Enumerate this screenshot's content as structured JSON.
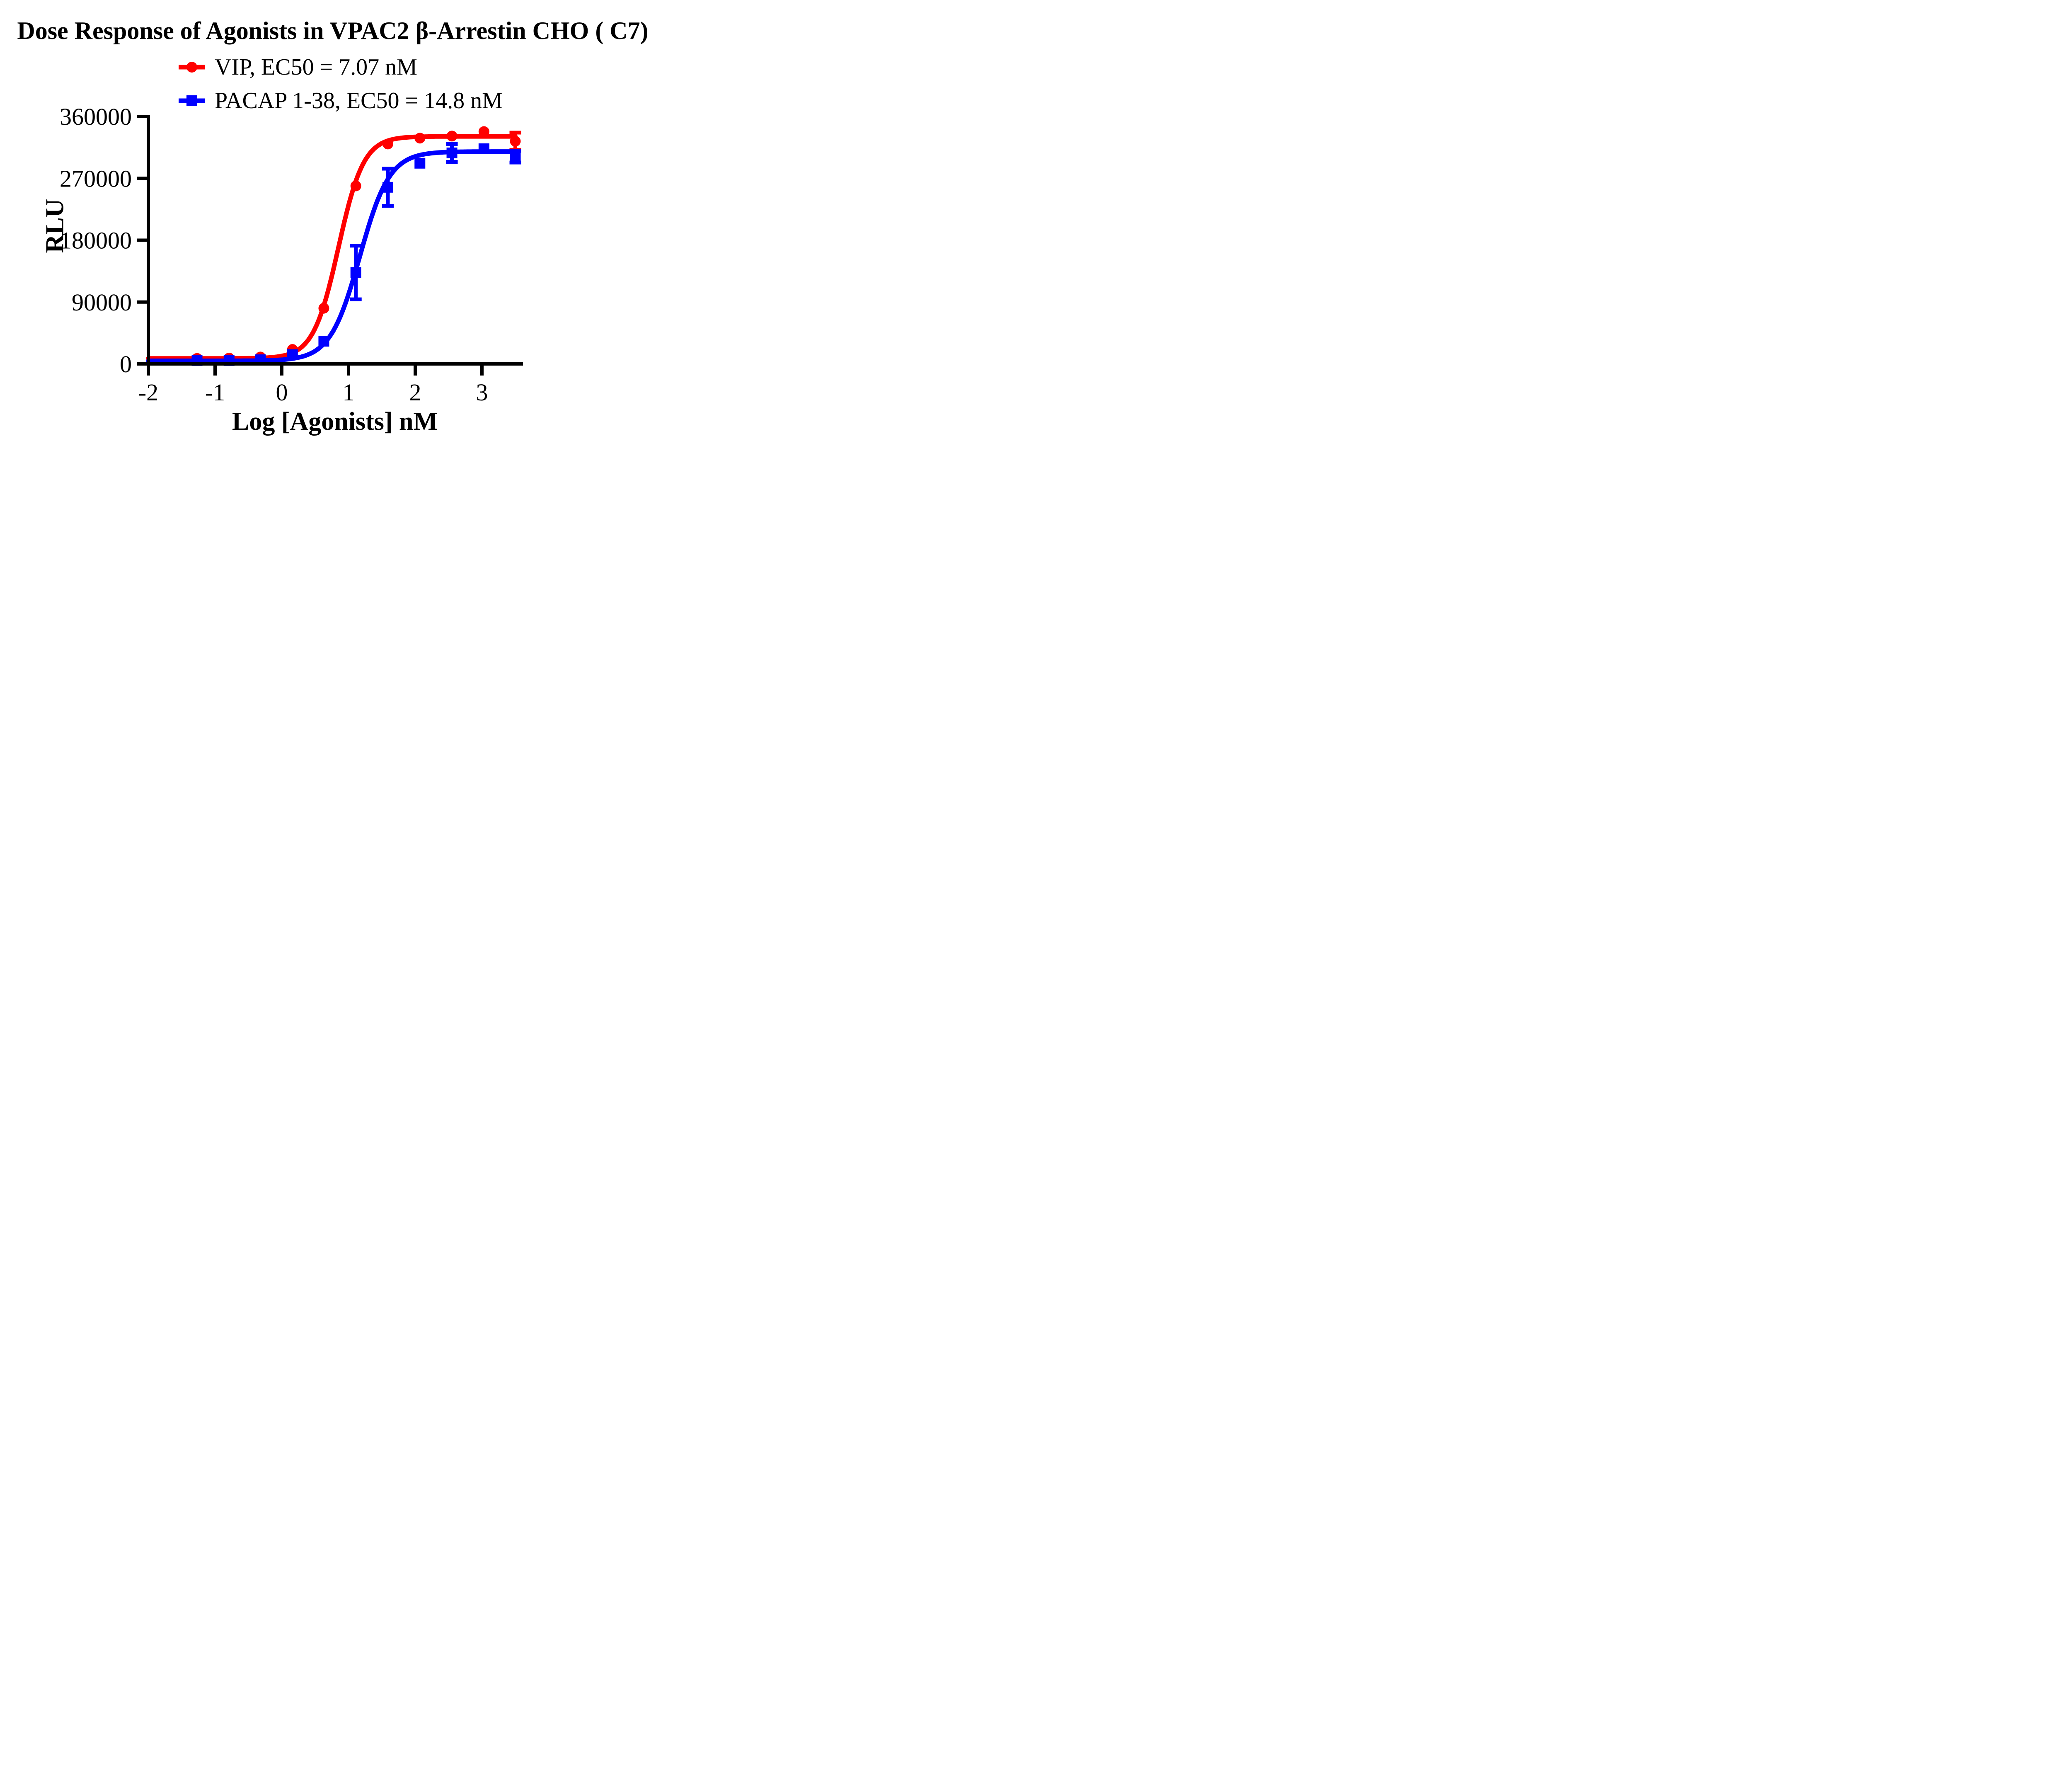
{
  "title": "Dose Response of Agonists in VPAC2 β-Arrestin CHO ( C7)",
  "colors": {
    "vip": "#ff0000",
    "pacap": "#0000ff",
    "axis": "#000000",
    "background": "#ffffff"
  },
  "chart_data": {
    "type": "scatter",
    "title": "Dose Response of Agonists in VPAC2 β-Arrestin CHO ( C7)",
    "xlabel": "Log [Agonists] nM",
    "ylabel": "RLU",
    "xlim": [
      -2,
      3.59
    ],
    "ylim": [
      0,
      360000
    ],
    "xticks": [
      -2,
      -1,
      0,
      1,
      2,
      3
    ],
    "yticks": [
      0,
      90000,
      180000,
      270000,
      360000
    ],
    "grid": false,
    "legend_position": "top-left-above-plot",
    "series": [
      {
        "name": "VIP, EC50 = 7.07 nM",
        "ec50_nM": 7.07,
        "color": "#ff0000",
        "marker": "circle",
        "x": [
          -1.27,
          -0.79,
          -0.32,
          0.16,
          0.63,
          1.11,
          1.59,
          2.07,
          2.55,
          3.03,
          3.5
        ],
        "y": [
          8000,
          8500,
          10000,
          21000,
          81000,
          259000,
          320000,
          328500,
          331500,
          338000,
          324000
        ],
        "yerr": [
          0,
          0,
          0,
          0,
          0,
          0,
          0,
          0,
          0,
          0,
          12500
        ],
        "fit": {
          "bottom": 8000,
          "top": 331000,
          "logEC50": 0.8494,
          "hill": 2.3
        }
      },
      {
        "name": "PACAP 1-38, EC50 = 14.8 nM",
        "ec50_nM": 14.8,
        "color": "#0000ff",
        "marker": "square",
        "x": [
          -1.27,
          -0.79,
          -0.32,
          0.16,
          0.63,
          1.11,
          1.59,
          2.07,
          2.55,
          3.03,
          3.5
        ],
        "y": [
          5000,
          5000,
          6000,
          13500,
          33000,
          133000,
          257000,
          292000,
          307000,
          313000,
          301500
        ],
        "yerr": [
          0,
          0,
          0,
          0,
          0,
          39000,
          27000,
          0,
          13000,
          0,
          8500
        ],
        "fit": {
          "bottom": 4500,
          "top": 309000,
          "logEC50": 1.1703,
          "hill": 1.95
        }
      }
    ]
  }
}
